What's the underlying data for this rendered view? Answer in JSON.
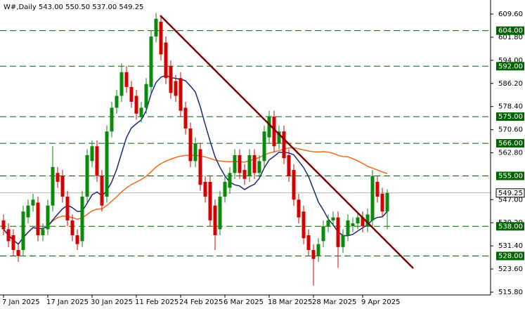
{
  "chart_data": {
    "type": "candlestick",
    "title": "W#,Daily  543.00 550.50 537.00 549.25",
    "categories": [
      "7 Jan 2025",
      null,
      null,
      null,
      null,
      null,
      null,
      null,
      null,
      "17 Jan 2025",
      null,
      null,
      null,
      null,
      null,
      null,
      null,
      null,
      "30 Jan 2025",
      null,
      null,
      null,
      null,
      null,
      null,
      null,
      null,
      "11 Feb 2025",
      null,
      null,
      null,
      null,
      null,
      null,
      null,
      null,
      "24 Feb 2025",
      null,
      null,
      null,
      null,
      null,
      null,
      null,
      null,
      "6 Mar 2025",
      null,
      null,
      null,
      null,
      null,
      null,
      null,
      null,
      "18 Mar 2025",
      null,
      null,
      null,
      null,
      null,
      null,
      null,
      null,
      "28 Mar 2025",
      null,
      null,
      null,
      null,
      null,
      null,
      null,
      null,
      null,
      "9 Apr 2025",
      null,
      null,
      null,
      null,
      null
    ],
    "open": [
      540,
      537,
      535,
      530,
      530,
      541,
      545,
      546,
      535,
      537,
      545,
      556,
      555,
      548,
      540,
      535,
      533,
      548,
      560,
      565,
      555,
      548,
      570,
      578,
      582,
      590,
      585,
      582,
      575,
      578,
      585,
      602,
      607,
      600,
      592,
      587,
      588,
      578,
      571,
      560,
      564,
      553,
      553,
      545,
      537,
      548,
      551,
      556,
      562,
      557,
      555,
      562,
      556,
      560,
      568,
      575,
      566,
      570,
      562,
      557,
      547,
      543,
      535,
      530,
      528,
      533,
      538,
      540,
      541,
      531,
      535,
      538,
      539,
      541,
      538,
      540,
      553,
      549,
      543
    ],
    "high": [
      542,
      539,
      537,
      532,
      545,
      547,
      549,
      548,
      539,
      547,
      565,
      558,
      557,
      550,
      542,
      537,
      550,
      564,
      567,
      567,
      557,
      572,
      580,
      584,
      593,
      592,
      587,
      584,
      580,
      588,
      604,
      610,
      609,
      602,
      594,
      589,
      590,
      580,
      573,
      568,
      566,
      555,
      555,
      547,
      550,
      555,
      558,
      564,
      564,
      559,
      564,
      564,
      562,
      572,
      577,
      577,
      572,
      572,
      564,
      559,
      549,
      545,
      537,
      532,
      534,
      540,
      542,
      543,
      543,
      537,
      542,
      541,
      543,
      543,
      544,
      557,
      555,
      551,
      550.5
    ],
    "low": [
      535,
      531,
      528,
      526,
      528,
      539,
      543,
      533,
      533,
      535,
      543,
      551,
      546,
      538,
      533,
      530,
      531,
      546,
      558,
      553,
      543,
      546,
      568,
      576,
      580,
      583,
      578,
      574,
      573,
      576,
      583,
      600,
      594,
      586,
      581,
      580,
      575,
      569,
      558,
      558,
      550,
      546,
      538,
      530,
      535,
      546,
      549,
      554,
      554,
      552,
      553,
      554,
      554,
      558,
      566,
      563,
      564,
      559,
      553,
      545,
      539,
      532,
      528,
      518,
      526,
      531,
      536,
      538,
      524,
      529,
      533,
      536,
      537,
      536,
      536,
      538,
      546,
      541,
      537
    ],
    "close": [
      537,
      533,
      530,
      528,
      543,
      545,
      547,
      535,
      537,
      545,
      558,
      553,
      548,
      540,
      535,
      532,
      548,
      562,
      565,
      555,
      545,
      570,
      578,
      582,
      590,
      585,
      580,
      576,
      578,
      586,
      602,
      608,
      596,
      588,
      583,
      582,
      577,
      571,
      560,
      566,
      552,
      548,
      540,
      535,
      548,
      553,
      556,
      562,
      556,
      554,
      562,
      556,
      560,
      570,
      575,
      565,
      570,
      561,
      555,
      547,
      541,
      534,
      530,
      527,
      532,
      538,
      540,
      541,
      531,
      535,
      540,
      539,
      541,
      538,
      542,
      555,
      548,
      543,
      549.25
    ],
    "up_color": "#0a8a0a",
    "down_color": "#d40000",
    "ylim": [
      514.85,
      614.34
    ],
    "yticks": [
      {
        "value": 609.6,
        "label": "609.60"
      },
      {
        "value": 601.8,
        "label": "601.80"
      },
      {
        "value": 594,
        "label": "594.00"
      },
      {
        "value": 586.2,
        "label": "586.20"
      },
      {
        "value": 578.4,
        "label": "578.40"
      },
      {
        "value": 570.6,
        "label": "570.60"
      },
      {
        "value": 562.8,
        "label": "562.80"
      },
      {
        "value": 547,
        "label": "547.00"
      },
      {
        "value": 539.2,
        "label": "539.20"
      },
      {
        "value": 531.4,
        "label": "531.40"
      },
      {
        "value": 523.6,
        "label": "523.60"
      },
      {
        "value": 515.8,
        "label": "515.80"
      }
    ],
    "levels": [
      {
        "value": 604,
        "label": "604.00"
      },
      {
        "value": 592,
        "label": "592.00"
      },
      {
        "value": 575,
        "label": "575.00"
      },
      {
        "value": 566,
        "label": "566.00"
      },
      {
        "value": 555,
        "label": "555.00"
      },
      {
        "value": 538,
        "label": "538.00"
      },
      {
        "value": 528,
        "label": "528.00"
      }
    ],
    "level_color": "#006400",
    "last_price": {
      "value": 549.25,
      "label": "549.25"
    }
  }
}
